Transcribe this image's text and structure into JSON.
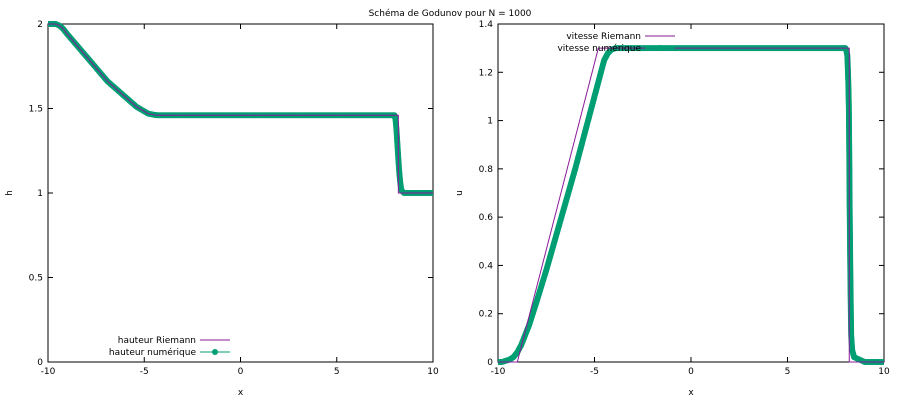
{
  "figure": {
    "title": "Schéma de Godunov pour N = 1000"
  },
  "colors": {
    "exact": "#8b1a9a",
    "numeric": "#009e73"
  },
  "chart_data": [
    {
      "type": "line",
      "xlabel": "x",
      "ylabel": "h",
      "xlim": [
        -10,
        10
      ],
      "ylim": [
        0,
        2
      ],
      "xticks": [
        -10,
        -5,
        0,
        5,
        10
      ],
      "yticks": [
        0,
        0.5,
        1,
        1.5,
        2
      ],
      "ytick_labels": [
        "0",
        "0.5",
        "1",
        "1.5",
        "2"
      ],
      "grid": false,
      "legend_position": "bottom-left",
      "series": [
        {
          "name": "hauteur Riemann",
          "style": "line",
          "x": [
            -10,
            -9.8,
            -9.6,
            -9.4,
            -9.2,
            -9.0,
            -8.7,
            -8.4,
            -8.1,
            -7.8,
            -7.5,
            -7.2,
            -6.9,
            -6.6,
            -6.3,
            -6.0,
            -5.7,
            -5.4,
            -5.1,
            -4.8,
            -4.6,
            -4.4,
            -4.3,
            0,
            4,
            8.0,
            8.2,
            8.2,
            8.5,
            10
          ],
          "y": [
            2.0,
            2.0,
            2.0,
            1.99,
            1.97,
            1.94,
            1.9,
            1.86,
            1.82,
            1.78,
            1.74,
            1.7,
            1.66,
            1.63,
            1.6,
            1.57,
            1.54,
            1.51,
            1.49,
            1.47,
            1.465,
            1.461,
            1.46,
            1.46,
            1.46,
            1.46,
            1.46,
            1.0,
            1.0,
            1.0
          ]
        },
        {
          "name": "hauteur numérique",
          "style": "linespoints",
          "x": [
            -10,
            -9.8,
            -9.6,
            -9.4,
            -9.2,
            -9.0,
            -8.7,
            -8.4,
            -8.1,
            -7.8,
            -7.5,
            -7.2,
            -6.9,
            -6.6,
            -6.3,
            -6.0,
            -5.7,
            -5.4,
            -5.1,
            -4.8,
            -4.6,
            -4.4,
            -4.3,
            -4.0,
            -3.0,
            -2.0,
            -1.0,
            0,
            1,
            2,
            3,
            4,
            5,
            6,
            7,
            7.8,
            8.0,
            8.05,
            8.1,
            8.15,
            8.2,
            8.25,
            8.3,
            8.35,
            8.4,
            8.5,
            9.0,
            9.5,
            10
          ],
          "y": [
            2.0,
            2.0,
            2.0,
            1.99,
            1.97,
            1.94,
            1.9,
            1.86,
            1.82,
            1.78,
            1.74,
            1.7,
            1.66,
            1.63,
            1.6,
            1.57,
            1.54,
            1.51,
            1.49,
            1.47,
            1.465,
            1.461,
            1.46,
            1.46,
            1.46,
            1.46,
            1.46,
            1.46,
            1.46,
            1.46,
            1.46,
            1.46,
            1.46,
            1.46,
            1.46,
            1.46,
            1.46,
            1.44,
            1.38,
            1.29,
            1.2,
            1.12,
            1.06,
            1.02,
            1.01,
            1.0,
            1.0,
            1.0,
            1.0
          ]
        }
      ]
    },
    {
      "type": "line",
      "xlabel": "x",
      "ylabel": "u",
      "xlim": [
        -10,
        10
      ],
      "ylim": [
        0,
        1.4
      ],
      "xticks": [
        -10,
        -5,
        0,
        5,
        10
      ],
      "yticks": [
        0,
        0.2,
        0.4,
        0.6,
        0.8,
        1.0,
        1.2,
        1.4
      ],
      "ytick_labels": [
        "0",
        "0.2",
        "0.4",
        "0.6",
        "0.8",
        "1",
        "1.2",
        "1.4"
      ],
      "grid": false,
      "legend_position": "top-left",
      "series": [
        {
          "name": "vitesse Riemann",
          "style": "line",
          "x": [
            -10,
            -9.0,
            -4.8,
            -4.4,
            8.2,
            8.2,
            10
          ],
          "y": [
            0.0,
            0.0,
            1.3,
            1.3,
            1.3,
            0.0,
            0.0
          ]
        },
        {
          "name": "vitesse numérique",
          "style": "linespoints",
          "x": [
            -10,
            -9.8,
            -9.6,
            -9.4,
            -9.2,
            -9.0,
            -8.8,
            -8.6,
            -8.4,
            -8.2,
            -8.0,
            -7.5,
            -7.0,
            -6.5,
            -6.0,
            -5.5,
            -5.0,
            -4.7,
            -4.5,
            -4.3,
            -4.1,
            -3.9,
            -3.0,
            -2.0,
            -1.0,
            0,
            1,
            2,
            3,
            4,
            5,
            6,
            7,
            7.8,
            8.0,
            8.05,
            8.1,
            8.12,
            8.15,
            8.18,
            8.2,
            8.22,
            8.25,
            8.28,
            8.3,
            8.35,
            8.45,
            9.0,
            9.5,
            10
          ],
          "y": [
            0.0,
            0.0,
            0.005,
            0.01,
            0.02,
            0.04,
            0.07,
            0.11,
            0.15,
            0.2,
            0.25,
            0.38,
            0.52,
            0.66,
            0.8,
            0.95,
            1.1,
            1.19,
            1.25,
            1.28,
            1.295,
            1.3,
            1.3,
            1.3,
            1.3,
            1.3,
            1.3,
            1.3,
            1.3,
            1.3,
            1.3,
            1.3,
            1.3,
            1.3,
            1.3,
            1.29,
            1.27,
            1.23,
            1.16,
            1.05,
            0.87,
            0.65,
            0.41,
            0.22,
            0.11,
            0.05,
            0.02,
            0.0,
            0.0,
            0.0
          ]
        }
      ]
    }
  ]
}
